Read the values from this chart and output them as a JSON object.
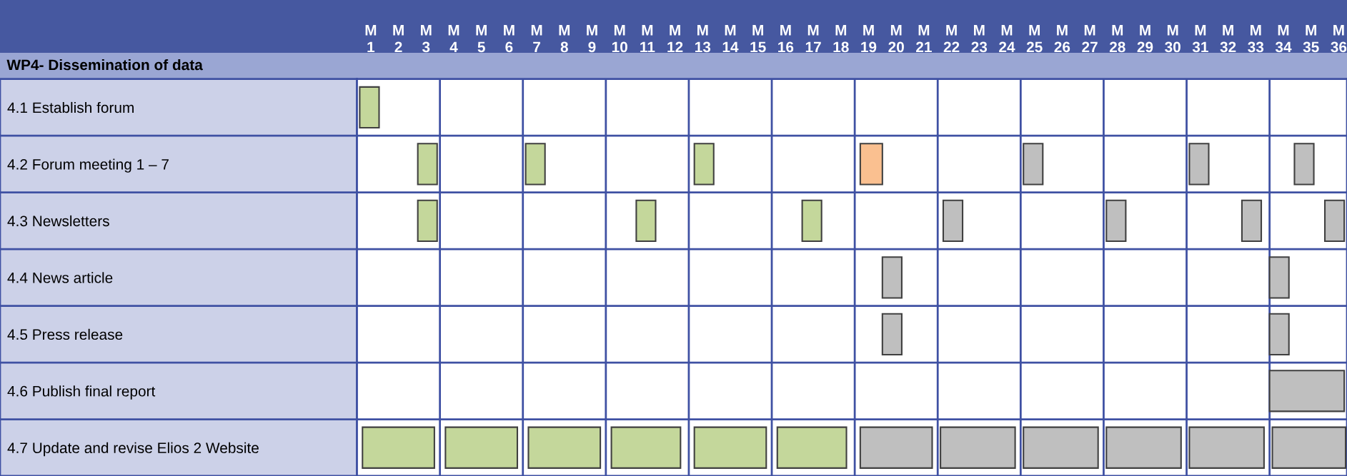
{
  "chart_data": {
    "type": "bar",
    "orientation": "horizontal",
    "subtitle": "WP4- Dissemination of data",
    "categories": [
      "4.1 Establish forum",
      "4.2 Forum meeting 1 – 7",
      "4.3 Newsletters",
      "4.4 News article",
      "4.5 Press release",
      "4.6 Publish final report",
      "4.7 Update and revise Elios 2 Website"
    ],
    "series": [
      {
        "values": [
          0.7,
          0.7,
          0.7,
          0.7,
          0.7,
          2.7,
          2.6
        ],
        "base": [
          0.6,
          2.7,
          2.7,
          19.5,
          19.5,
          33.5,
          0.7
        ],
        "colors": [
          "#c4d79b",
          "#c4d79b",
          "#c4d79b",
          "#bfbfbf",
          "#bfbfbf",
          "#bfbfbf",
          "#c4d79b"
        ]
      },
      {
        "values": [
          null,
          0.7,
          0.7,
          0.7,
          0.7,
          null,
          2.6
        ],
        "base": [
          null,
          6.6,
          10.6,
          33.5,
          33.5,
          null,
          3.7
        ],
        "colors": [
          null,
          "#c4d79b",
          "#c4d79b",
          "#bfbfbf",
          "#bfbfbf",
          null,
          "#c4d79b"
        ]
      },
      {
        "values": [
          null,
          0.7,
          0.7,
          null,
          null,
          null,
          2.6
        ],
        "base": [
          null,
          12.7,
          16.6,
          null,
          null,
          null,
          6.7
        ],
        "colors": [
          null,
          "#c4d79b",
          "#c4d79b",
          null,
          null,
          null,
          "#c4d79b"
        ]
      },
      {
        "values": [
          null,
          0.8,
          0.7,
          null,
          null,
          null,
          2.5
        ],
        "base": [
          null,
          18.7,
          21.7,
          null,
          null,
          null,
          9.7
        ],
        "colors": [
          null,
          "#fac090",
          "#bfbfbf",
          null,
          null,
          null,
          "#c4d79b"
        ]
      },
      {
        "values": [
          null,
          0.7,
          0.7,
          null,
          null,
          null,
          2.6
        ],
        "base": [
          null,
          24.6,
          27.6,
          null,
          null,
          null,
          12.7
        ],
        "colors": [
          null,
          "#bfbfbf",
          "#bfbfbf",
          null,
          null,
          null,
          "#c4d79b"
        ]
      },
      {
        "values": [
          null,
          0.7,
          0.7,
          null,
          null,
          null,
          2.5
        ],
        "base": [
          null,
          30.6,
          32.5,
          null,
          null,
          null,
          15.7
        ],
        "colors": [
          null,
          "#bfbfbf",
          "#bfbfbf",
          null,
          null,
          null,
          "#c4d79b"
        ]
      },
      {
        "values": [
          null,
          0.7,
          0.7,
          null,
          null,
          null,
          2.6
        ],
        "base": [
          null,
          34.4,
          35.5,
          null,
          null,
          null,
          18.7
        ],
        "colors": [
          null,
          "#bfbfbf",
          "#bfbfbf",
          null,
          null,
          null,
          "#bfbfbf"
        ]
      },
      {
        "values": [
          null,
          null,
          null,
          null,
          null,
          null,
          2.7
        ],
        "base": [
          null,
          null,
          null,
          null,
          null,
          null,
          21.6
        ],
        "colors": [
          null,
          null,
          null,
          null,
          null,
          null,
          "#bfbfbf"
        ]
      },
      {
        "values": [
          null,
          null,
          null,
          null,
          null,
          null,
          2.7
        ],
        "base": [
          null,
          null,
          null,
          null,
          null,
          null,
          24.6
        ],
        "colors": [
          null,
          null,
          null,
          null,
          null,
          null,
          "#bfbfbf"
        ]
      },
      {
        "values": [
          null,
          null,
          null,
          null,
          null,
          null,
          2.7
        ],
        "base": [
          null,
          null,
          null,
          null,
          null,
          null,
          27.6
        ],
        "colors": [
          null,
          null,
          null,
          null,
          null,
          null,
          "#bfbfbf"
        ]
      },
      {
        "values": [
          null,
          null,
          null,
          null,
          null,
          null,
          2.7
        ],
        "base": [
          null,
          null,
          null,
          null,
          null,
          null,
          30.6
        ],
        "colors": [
          null,
          null,
          null,
          null,
          null,
          null,
          "#bfbfbf"
        ]
      },
      {
        "values": [
          null,
          null,
          null,
          null,
          null,
          null,
          2.65
        ],
        "base": [
          null,
          null,
          null,
          null,
          null,
          null,
          33.6
        ],
        "colors": [
          null,
          null,
          null,
          null,
          null,
          null,
          "#bfbfbf"
        ]
      }
    ],
    "xlim": [
      0.5,
      36.3
    ],
    "xticks": [
      1,
      2,
      3,
      4,
      5,
      6,
      7,
      8,
      9,
      10,
      11,
      12,
      13,
      14,
      15,
      16,
      17,
      18,
      19,
      20,
      21,
      22,
      23,
      24,
      25,
      26,
      27,
      28,
      29,
      30,
      31,
      32,
      33,
      34,
      35,
      36
    ],
    "annotations": [
      "M",
      "M",
      "M",
      "M",
      "M",
      "M",
      "M",
      "M",
      "M",
      "M",
      "M",
      "M",
      "M",
      "M",
      "M",
      "M",
      "M",
      "M",
      "M",
      "M",
      "M",
      "M",
      "M",
      "M",
      "M",
      "M",
      "M",
      "M",
      "M",
      "M",
      "M",
      "M",
      "M",
      "M",
      "M",
      "M"
    ],
    "ref_lines": [
      {
        "axis": "x",
        "value": 3.5,
        "color": "#3f51a3"
      },
      {
        "axis": "x",
        "value": 6.5,
        "color": "#3f51a3"
      },
      {
        "axis": "x",
        "value": 9.5,
        "color": "#3f51a3"
      },
      {
        "axis": "x",
        "value": 12.5,
        "color": "#3f51a3"
      },
      {
        "axis": "x",
        "value": 15.5,
        "color": "#3f51a3"
      },
      {
        "axis": "x",
        "value": 18.5,
        "color": "#3f51a3"
      },
      {
        "axis": "x",
        "value": 21.5,
        "color": "#3f51a3"
      },
      {
        "axis": "x",
        "value": 24.5,
        "color": "#3f51a3"
      },
      {
        "axis": "x",
        "value": 27.5,
        "color": "#3f51a3"
      },
      {
        "axis": "x",
        "value": 30.5,
        "color": "#3f51a3"
      },
      {
        "axis": "x",
        "value": 33.5,
        "color": "#3f51a3"
      }
    ],
    "grid": false,
    "legend": false
  }
}
